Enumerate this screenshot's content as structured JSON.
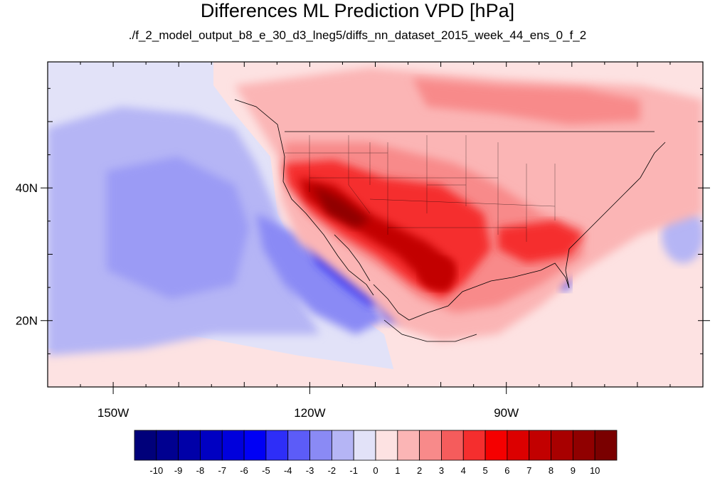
{
  "title": "Differences ML Prediction VPD [hPa]",
  "subtitle": "./f_2_model_output_b8_e_30_d3_lneg5/diffs_nn_dataset_2015_week_44_ens_0_f_2",
  "map": {
    "projection": "cylindrical equidistant",
    "lon_range": [
      -160,
      -60
    ],
    "lat_range": [
      10,
      59
    ],
    "lat_ticks": [
      {
        "value": 40,
        "label": "40N"
      },
      {
        "value": 20,
        "label": "20N"
      }
    ],
    "lon_ticks": [
      {
        "value": -150,
        "label": "150W"
      },
      {
        "value": -120,
        "label": "120W"
      },
      {
        "value": -90,
        "label": "90W"
      }
    ]
  },
  "colorbar": {
    "labels": [
      "-10",
      "-9",
      "-8",
      "-7",
      "-6",
      "-5",
      "-4",
      "-3",
      "-2",
      "-1",
      "0",
      "1",
      "2",
      "3",
      "4",
      "5",
      "6",
      "7",
      "8",
      "9",
      "10"
    ],
    "colors": [
      "#00007a",
      "#000090",
      "#0000a8",
      "#0000c2",
      "#0000dc",
      "#0000f5",
      "#2e2ef8",
      "#5c5cf8",
      "#8a8af5",
      "#b5b5f5",
      "#e2e2f8",
      "#fde2e2",
      "#fbb5b5",
      "#f88a8a",
      "#f55c5c",
      "#f52e2e",
      "#f50000",
      "#dc0000",
      "#c20000",
      "#a80000",
      "#900000",
      "#7a0000"
    ]
  }
}
